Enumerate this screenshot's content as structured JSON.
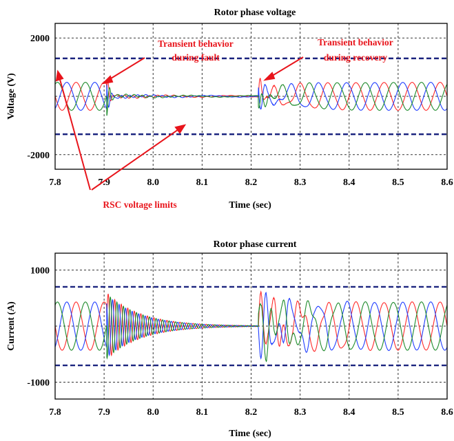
{
  "chart_data": [
    {
      "type": "line",
      "title": "Rotor phase voltage",
      "xlabel": "Time (sec)",
      "ylabel": "Voltage (V)",
      "xlim": [
        7.8,
        8.6
      ],
      "ylim": [
        -2500,
        2500
      ],
      "x_ticks": [
        7.8,
        7.9,
        8.0,
        8.1,
        8.2,
        8.3,
        8.4,
        8.5,
        8.6
      ],
      "x_tick_labels": [
        "7.8",
        "7.9",
        "8.0",
        "8.1",
        "8.2",
        "8.3",
        "8.4",
        "8.5",
        "8.6"
      ],
      "y_ticks": [
        2000,
        -2000
      ],
      "y_tick_labels": [
        "2000",
        "-2000"
      ],
      "grid": true,
      "fault_start": 7.905,
      "fault_clear": 8.215,
      "limits": [
        1300,
        -1300
      ],
      "series": [
        {
          "color": "#ff2a2a",
          "normal_amplitude": 480,
          "phase_deg": 0,
          "fault_amplitude": 70,
          "spike": 720
        },
        {
          "color": "#1f3dff",
          "normal_amplitude": 480,
          "phase_deg": 120,
          "fault_amplitude": 70,
          "spike": 620
        },
        {
          "color": "#1c8a2a",
          "normal_amplitude": 480,
          "phase_deg": 240,
          "fault_amplitude": 70,
          "spike": 680
        }
      ],
      "annotations": [
        {
          "text": [
            "Transient behavior",
            "during fault"
          ]
        },
        {
          "text": [
            "Transient behavior",
            "during recovery"
          ]
        },
        {
          "text": [
            "RSC voltage limits"
          ]
        }
      ]
    },
    {
      "type": "line",
      "title": "Rotor phase current",
      "xlabel": "Time (sec)",
      "ylabel": "Current (A)",
      "xlim": [
        7.8,
        8.6
      ],
      "ylim": [
        -1300,
        1300
      ],
      "x_ticks": [
        7.8,
        7.9,
        8.0,
        8.1,
        8.2,
        8.3,
        8.4,
        8.5,
        8.6
      ],
      "x_tick_labels": [
        "7.8",
        "7.9",
        "8.0",
        "8.1",
        "8.2",
        "8.3",
        "8.4",
        "8.5",
        "8.6"
      ],
      "y_ticks": [
        1000,
        -1000
      ],
      "y_tick_labels": [
        "1000",
        "-1000"
      ],
      "grid": true,
      "fault_start": 7.905,
      "fault_clear": 8.215,
      "limits": [
        700,
        -700
      ],
      "series": [
        {
          "color": "#ff2a2a",
          "normal_amplitude": 430,
          "phase_deg": 0,
          "fault_peak": 600
        },
        {
          "color": "#1f3dff",
          "normal_amplitude": 430,
          "phase_deg": 120,
          "fault_peak": 560
        },
        {
          "color": "#1c8a2a",
          "normal_amplitude": 430,
          "phase_deg": 240,
          "fault_peak": 580
        }
      ]
    }
  ]
}
